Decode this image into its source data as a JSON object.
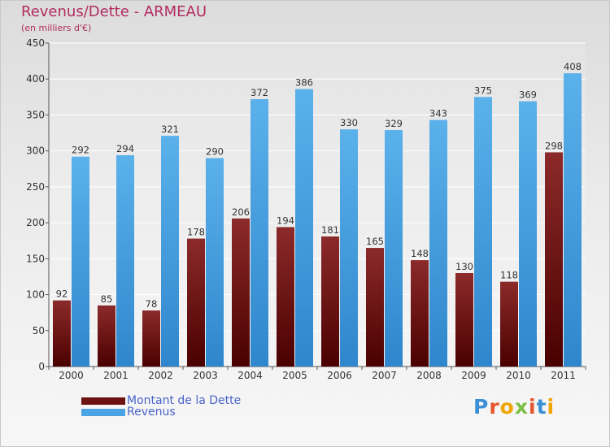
{
  "header": {
    "title": "Revenus/Dette - ARMEAU",
    "subtitle": "(en milliers d'€)"
  },
  "chart_data": {
    "type": "bar",
    "title": "Revenus/Dette - ARMEAU",
    "ylabel": "(en milliers d'€)",
    "xlabel": "",
    "ylim": [
      0,
      450
    ],
    "yticks": [
      0,
      50,
      100,
      150,
      200,
      250,
      300,
      350,
      400,
      450
    ],
    "grid": true,
    "legend_position": "bottom-left",
    "categories": [
      "2000",
      "2001",
      "2002",
      "2003",
      "2004",
      "2005",
      "2006",
      "2007",
      "2008",
      "2009",
      "2010",
      "2011"
    ],
    "series": [
      {
        "name": "Montant de la Dette",
        "color": "#7a1a1a",
        "values": [
          92,
          85,
          78,
          178,
          206,
          194,
          181,
          165,
          148,
          130,
          118,
          298
        ]
      },
      {
        "name": "Revenus",
        "color": "#4aa3e2",
        "values": [
          292,
          294,
          321,
          290,
          372,
          386,
          330,
          329,
          343,
          375,
          369,
          408
        ]
      }
    ]
  },
  "logo": {
    "text": "Proxiti",
    "colors": [
      "#3b8fd6",
      "#e4572e",
      "#f0a500",
      "#7bc043",
      "#e4572e",
      "#3b8fd6",
      "#f0a500"
    ]
  }
}
